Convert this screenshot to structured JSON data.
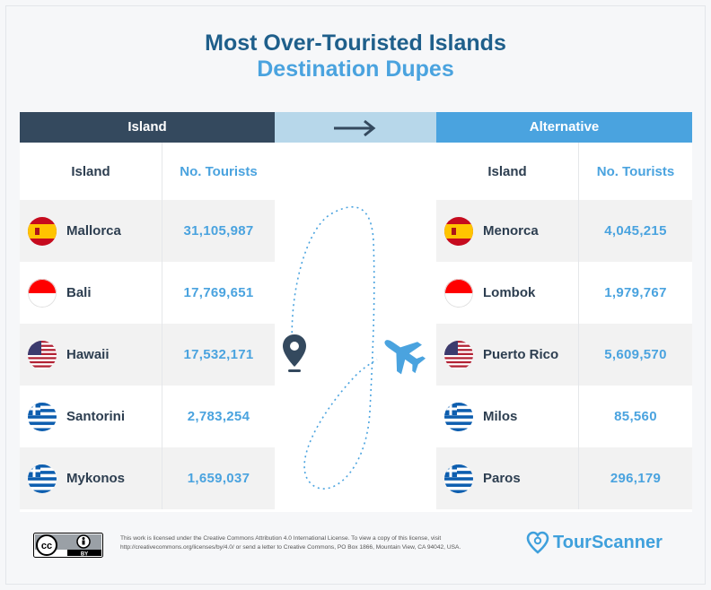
{
  "title": "Most Over-Touristed Islands",
  "subtitle": "Destination Dupes",
  "left_header": "Island",
  "right_header": "Alternative",
  "col_island": "Island",
  "col_tourists": "No. Tourists",
  "rows": [
    {
      "island": "Mallorca",
      "tourists": "31,105,987",
      "flag": "spain",
      "alt_island": "Menorca",
      "alt_tourists": "4,045,215",
      "alt_flag": "spain"
    },
    {
      "island": "Bali",
      "tourists": "17,769,651",
      "flag": "indonesia",
      "alt_island": "Lombok",
      "alt_tourists": "1,979,767",
      "alt_flag": "indonesia"
    },
    {
      "island": "Hawaii",
      "tourists": "17,532,171",
      "flag": "usa",
      "alt_island": "Puerto Rico",
      "alt_tourists": "5,609,570",
      "alt_flag": "usa"
    },
    {
      "island": "Santorini",
      "tourists": "2,783,254",
      "flag": "greece",
      "alt_island": "Milos",
      "alt_tourists": "85,560",
      "alt_flag": "greece"
    },
    {
      "island": "Mykonos",
      "tourists": "1,659,037",
      "flag": "greece",
      "alt_island": "Paros",
      "alt_tourists": "296,179",
      "alt_flag": "greece"
    }
  ],
  "license_text": "This work is licensed under the Creative Commons Attribution 4.0 International License. To view a copy of this license, visit http://creativecommons.org/licenses/by/4.0/ or send a letter to Creative Commons, PO Box 1866, Mountain View, CA 94042, USA.",
  "cc_badge_label": "BY",
  "brand": "TourScanner",
  "icons": {
    "arrow": "arrow-right-icon",
    "pin": "map-pin-icon",
    "plane": "airplane-icon",
    "cc": "creative-commons-icon",
    "brand": "tourscanner-logo-icon"
  },
  "colors": {
    "dark_header": "#34495e",
    "accent": "#4aa3df",
    "light_header": "#b7d7ea",
    "title": "#1f5f8b"
  }
}
